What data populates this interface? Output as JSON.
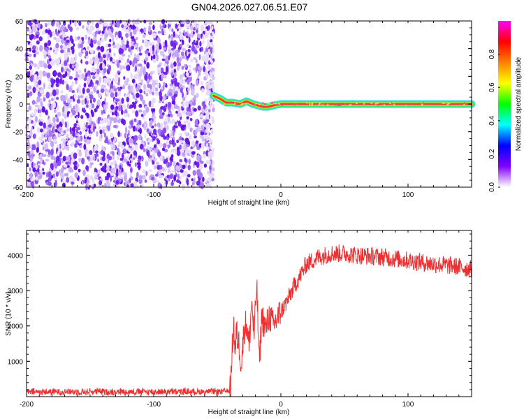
{
  "title": "GN04.2026.027.06.51.E07",
  "colors": {
    "snr_line": "#f03030",
    "axis": "#000000",
    "scatter": "#7a2cf0"
  },
  "chart_data": [
    {
      "type": "heatmap",
      "title": "GN04.2026.027.06.51.E07",
      "xlabel": "Height of straight line (km)",
      "ylabel": "Frequency (Hz)",
      "xlim": [
        -200,
        150
      ],
      "ylim": [
        -60,
        60
      ],
      "x_ticks": [
        -200,
        -100,
        0,
        100
      ],
      "y_ticks": [
        -60,
        -40,
        -20,
        0,
        20,
        40,
        60
      ],
      "colorbar": {
        "label": "Normalized spectral amplitude",
        "range": [
          0,
          1
        ],
        "ticks": [
          "0.0",
          "0.2",
          "0.4",
          "0.6",
          "0.8"
        ],
        "tick_values": [
          0,
          0.2,
          0.4,
          0.6,
          0.8
        ],
        "colors": [
          "#ffffff",
          "#8000ff",
          "#0000ff",
          "#00ffff",
          "#00ff00",
          "#ffff00",
          "#ff8000",
          "#ff0000",
          "#ff00ff"
        ]
      },
      "noise_region": {
        "x_range": [
          -200,
          -53
        ],
        "y_range": [
          -60,
          60
        ],
        "color": "#7a2cf0"
      },
      "signal_band": {
        "x_range": [
          -53,
          150
        ],
        "center_frequency": 0,
        "trace": [
          {
            "x": -53,
            "y": 6
          },
          {
            "x": -48,
            "y": 4
          },
          {
            "x": -43,
            "y": 1
          },
          {
            "x": -38,
            "y": 1
          },
          {
            "x": -32,
            "y": 0
          },
          {
            "x": -27,
            "y": 2
          },
          {
            "x": -22,
            "y": 0
          },
          {
            "x": -18,
            "y": -1
          },
          {
            "x": -14,
            "y": -2
          },
          {
            "x": -10,
            "y": -2
          },
          {
            "x": -6,
            "y": -1
          },
          {
            "x": 0,
            "y": 0
          },
          {
            "x": 150,
            "y": 0
          }
        ]
      }
    },
    {
      "type": "line",
      "xlabel": "Height of straight line (km)",
      "ylabel": "SNR (10 * v/v)",
      "xlim": [
        -200,
        150
      ],
      "ylim": [
        0,
        4700
      ],
      "x_ticks": [
        -200,
        -100,
        0,
        100
      ],
      "y_ticks": [
        1000,
        2000,
        3000,
        4000
      ],
      "series": [
        {
          "name": "SNR",
          "envelope": [
            {
              "x": -200,
              "y": 130
            },
            {
              "x": -150,
              "y": 140
            },
            {
              "x": -100,
              "y": 140
            },
            {
              "x": -50,
              "y": 140
            },
            {
              "x": -40,
              "y": 160
            },
            {
              "x": -39,
              "y": 600
            },
            {
              "x": -38,
              "y": 1600
            },
            {
              "x": -37,
              "y": 2000
            },
            {
              "x": -36,
              "y": 1200
            },
            {
              "x": -35,
              "y": 1800
            },
            {
              "x": -33,
              "y": 1500
            },
            {
              "x": -31,
              "y": 900
            },
            {
              "x": -29,
              "y": 1900
            },
            {
              "x": -27,
              "y": 2100
            },
            {
              "x": -25,
              "y": 1400
            },
            {
              "x": -23,
              "y": 2700
            },
            {
              "x": -21,
              "y": 1700
            },
            {
              "x": -19,
              "y": 3200
            },
            {
              "x": -17,
              "y": 900
            },
            {
              "x": -15,
              "y": 2300
            },
            {
              "x": -12,
              "y": 1900
            },
            {
              "x": -9,
              "y": 2300
            },
            {
              "x": -6,
              "y": 2000
            },
            {
              "x": -3,
              "y": 2200
            },
            {
              "x": 0,
              "y": 2400
            },
            {
              "x": 5,
              "y": 2700
            },
            {
              "x": 10,
              "y": 3100
            },
            {
              "x": 15,
              "y": 3400
            },
            {
              "x": 20,
              "y": 3750
            },
            {
              "x": 30,
              "y": 3950
            },
            {
              "x": 40,
              "y": 4050
            },
            {
              "x": 50,
              "y": 4050
            },
            {
              "x": 60,
              "y": 4000
            },
            {
              "x": 80,
              "y": 3950
            },
            {
              "x": 100,
              "y": 3850
            },
            {
              "x": 120,
              "y": 3750
            },
            {
              "x": 135,
              "y": 3700
            },
            {
              "x": 150,
              "y": 3600
            }
          ]
        }
      ]
    }
  ]
}
